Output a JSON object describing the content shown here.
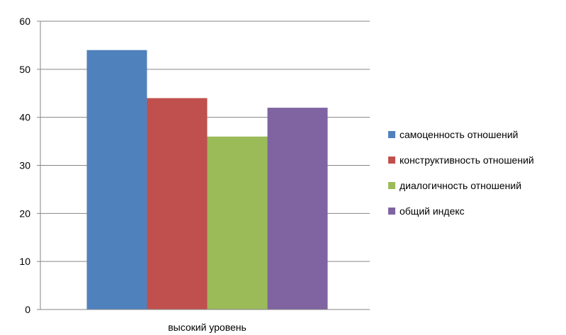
{
  "chart_data": {
    "type": "bar",
    "title": "",
    "xlabel": "",
    "ylabel": "",
    "categories": [
      "высокий уровень"
    ],
    "series": [
      {
        "name": "самоценность отношений",
        "values": [
          54
        ],
        "color": "#4F81BD"
      },
      {
        "name": "конструктивность отношений",
        "values": [
          44
        ],
        "color": "#C0504D"
      },
      {
        "name": "диалогичность отношений",
        "values": [
          36
        ],
        "color": "#9BBB59"
      },
      {
        "name": "общий индекс",
        "values": [
          42
        ],
        "color": "#8064A2"
      }
    ],
    "ylim": [
      0,
      60
    ],
    "yticks": [
      0,
      10,
      20,
      30,
      40,
      50,
      60
    ],
    "grid": true,
    "legend_position": "right"
  }
}
